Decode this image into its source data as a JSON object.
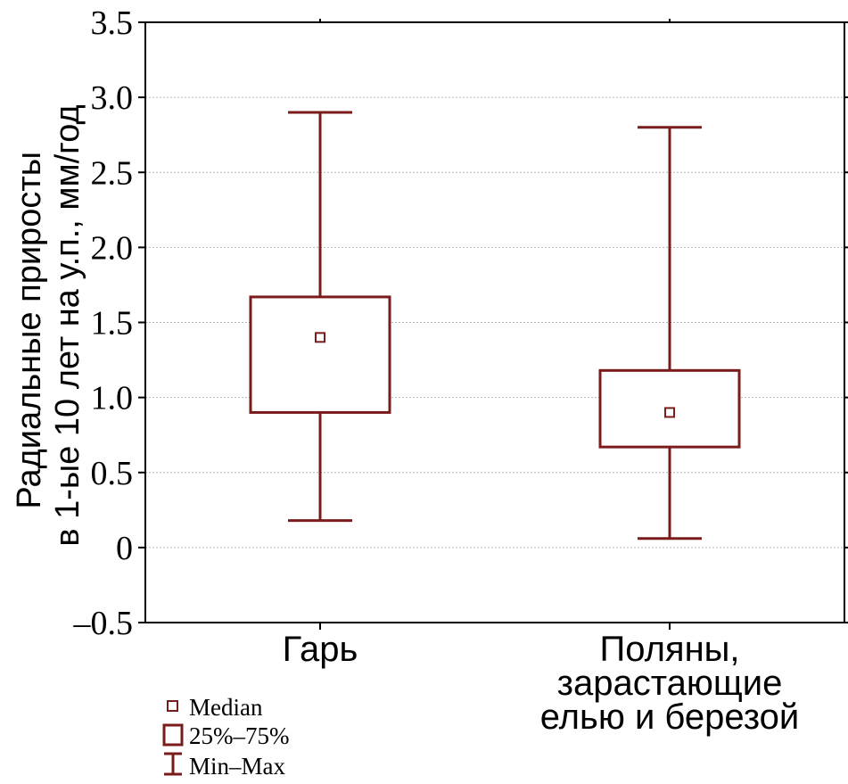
{
  "chart_data": {
    "type": "boxplot",
    "ylabel_lines": [
      "Радиальные приросты",
      "в 1-ые 10 лет на у.п., мм/год"
    ],
    "ylim": [
      -0.5,
      3.5
    ],
    "yticks": [
      -0.5,
      0,
      0.5,
      1.0,
      1.5,
      2.0,
      2.5,
      3.0,
      3.5
    ],
    "ytick_labels": [
      "–0.5",
      "0",
      "0.5",
      "1.0",
      "1.5",
      "2.0",
      "2.5",
      "3.0",
      "3.5"
    ],
    "grid": true,
    "color": "#7b1c1c",
    "categories": [
      {
        "label_lines": [
          "Гарь"
        ],
        "median": 1.4,
        "q1": 0.9,
        "q3": 1.67,
        "min": 0.18,
        "max": 2.9
      },
      {
        "label_lines": [
          "Поляны,",
          "зарастающие",
          "елью и березой"
        ],
        "median": 0.9,
        "q1": 0.67,
        "q3": 1.18,
        "min": 0.06,
        "max": 2.8
      }
    ],
    "legend": {
      "placement": "bottom-left",
      "items": [
        {
          "symbol": "median",
          "label": "Median"
        },
        {
          "symbol": "box",
          "label": "25%–75%"
        },
        {
          "symbol": "whisker",
          "label": "Min–Max"
        }
      ]
    }
  }
}
